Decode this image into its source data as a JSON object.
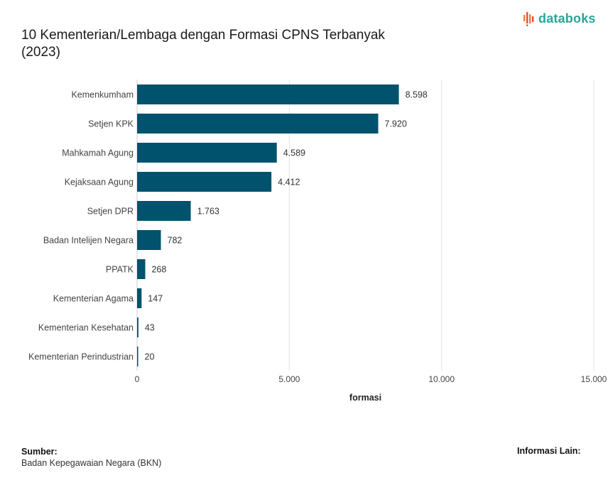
{
  "header": {
    "title_line1": "10 Kementerian/Lembaga dengan Formasi CPNS Terbanyak",
    "title_line2": "(2023)",
    "brand": "databoks"
  },
  "colors": {
    "bar": "#00526d",
    "grid": "#e3e3e3",
    "brand": "#2aa59a"
  },
  "chart_data": {
    "type": "bar",
    "orientation": "horizontal",
    "title": "10 Kementerian/Lembaga dengan Formasi CPNS Terbanyak (2023)",
    "categories": [
      "Kemenkumham",
      "Setjen KPK",
      "Mahkamah Agung",
      "Kejaksaan Agung",
      "Setjen DPR",
      "Badan Intelijen Negara",
      "PPATK",
      "Kementerian Agama",
      "Kementerian Kesehatan",
      "Kementerian Perindustrian"
    ],
    "values": [
      8598,
      7920,
      4589,
      4412,
      1763,
      782,
      268,
      147,
      43,
      20
    ],
    "value_labels": [
      "8.598",
      "7.920",
      "4.589",
      "4.412",
      "1.763",
      "782",
      "268",
      "147",
      "43",
      "20"
    ],
    "xlabel": "formasi",
    "ylabel": "",
    "xlim": [
      0,
      15000
    ],
    "xticks": [
      0,
      5000,
      10000,
      15000
    ],
    "xtick_labels": [
      "0",
      "5.000",
      "10.000",
      "15.000"
    ],
    "grid": true
  },
  "footer": {
    "source_title": "Sumber:",
    "source_text": "Badan Kepegawaian Negara (BKN)",
    "info_title": "Informasi Lain:"
  }
}
